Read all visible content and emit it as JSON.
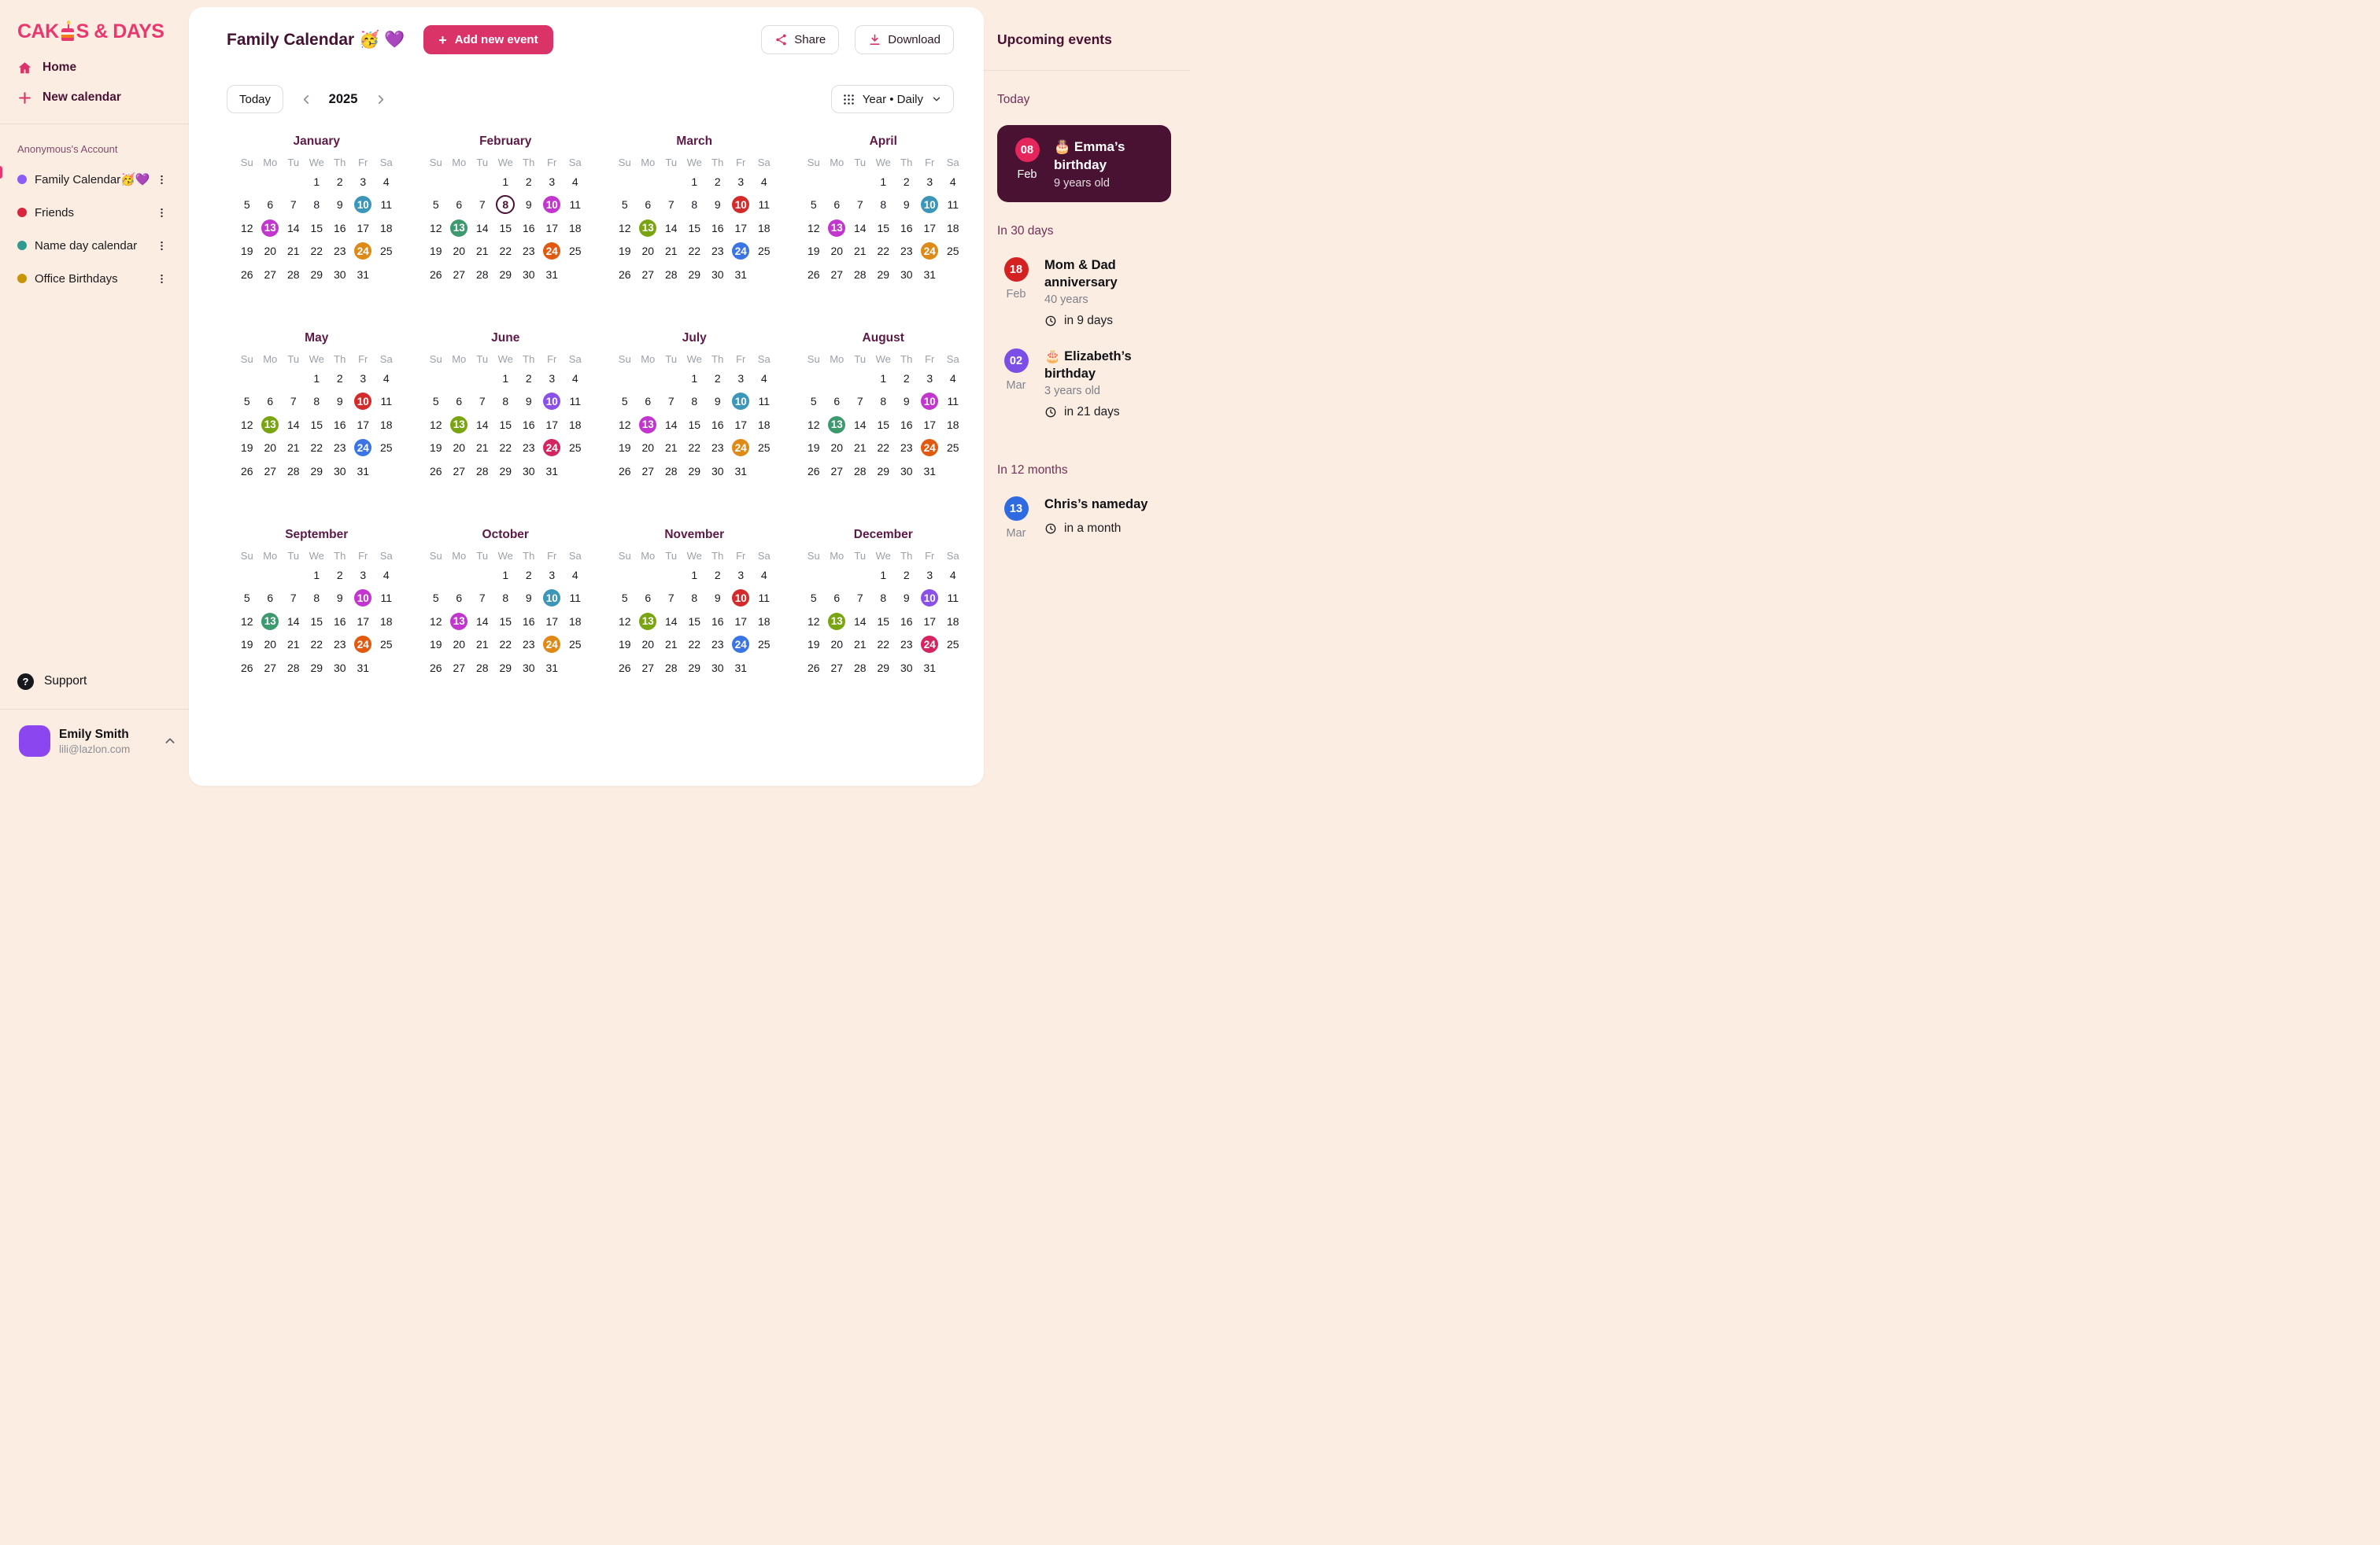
{
  "app": {
    "logo_prefix": "CAK",
    "logo_suffix": "S & DAYS",
    "logo_color": "#e8386f",
    "accent_color": "#d93368",
    "background_color": "#fcede2"
  },
  "sidebar": {
    "nav": {
      "home": "Home",
      "new_calendar": "New calendar"
    },
    "account_label": "Anonymous's Account",
    "calendars": [
      {
        "label": "Family Calendar🥳💜",
        "color": "#8b5cf6",
        "active": true
      },
      {
        "label": "Friends",
        "color": "#d7263d",
        "active": false
      },
      {
        "label": "Name day calendar",
        "color": "#2f9a8f",
        "active": false
      },
      {
        "label": "Office Birthdays",
        "color": "#c9930a",
        "active": false
      }
    ],
    "support_label": "Support",
    "user": {
      "name": "Emily Smith",
      "email": "lili@lazlon.com",
      "avatar_color": "#8b46f0"
    }
  },
  "header": {
    "title": "Family Calendar 🥳 💜",
    "add_event_label": "Add new event",
    "share_label": "Share",
    "download_label": "Download"
  },
  "toolbar": {
    "today_label": "Today",
    "year": "2025",
    "view_label": "Year • Daily"
  },
  "calendar": {
    "weekdays": [
      "Su",
      "Mo",
      "Tu",
      "We",
      "Th",
      "Fr",
      "Sa"
    ],
    "rows": [
      [
        "",
        "",
        "",
        "1",
        "2",
        "3",
        "4"
      ],
      [
        "5",
        "6",
        "7",
        "8",
        "9",
        "10",
        "11"
      ],
      [
        "12",
        "13",
        "14",
        "15",
        "16",
        "17",
        "18"
      ],
      [
        "19",
        "20",
        "21",
        "22",
        "23",
        "24",
        "25"
      ],
      [
        "26",
        "27",
        "28",
        "29",
        "30",
        "31",
        ""
      ]
    ],
    "palette": {
      "teal": "#3b96b9",
      "magenta": "#c235ce",
      "amber": "#df8a16",
      "green": "#3d9a6e",
      "olive": "#7aa513",
      "red": "#d32b2b",
      "blue": "#3b74e5",
      "violet": "#8a50e8",
      "crimson": "#d42560",
      "redorange": "#e25a10"
    },
    "today_ring_color": "#4b1233",
    "months": [
      {
        "name": "January",
        "marks": {
          "10": "teal",
          "13": "magenta",
          "24": "amber"
        }
      },
      {
        "name": "February",
        "today": "8",
        "marks": {
          "10": "magenta",
          "13": "green",
          "24": "redorange"
        }
      },
      {
        "name": "March",
        "marks": {
          "10": "red",
          "13": "olive",
          "24": "blue"
        }
      },
      {
        "name": "April",
        "marks": {
          "10": "teal",
          "13": "magenta",
          "24": "amber"
        }
      },
      {
        "name": "May",
        "marks": {
          "10": "red",
          "13": "olive",
          "24": "blue"
        }
      },
      {
        "name": "June",
        "marks": {
          "10": "violet",
          "13": "olive",
          "24": "crimson"
        }
      },
      {
        "name": "July",
        "marks": {
          "10": "teal",
          "13": "magenta",
          "24": "amber"
        }
      },
      {
        "name": "August",
        "marks": {
          "10": "magenta",
          "13": "green",
          "24": "redorange"
        }
      },
      {
        "name": "September",
        "marks": {
          "10": "magenta",
          "13": "green",
          "24": "redorange"
        }
      },
      {
        "name": "October",
        "marks": {
          "10": "teal",
          "13": "magenta",
          "24": "amber"
        }
      },
      {
        "name": "November",
        "marks": {
          "10": "red",
          "13": "olive",
          "24": "blue"
        }
      },
      {
        "name": "December",
        "marks": {
          "10": "violet",
          "13": "olive",
          "24": "crimson"
        }
      }
    ]
  },
  "events_panel": {
    "title": "Upcoming events",
    "sections": [
      {
        "label": "Today",
        "items": [
          {
            "day": "08",
            "month": "Feb",
            "badge_color": "#e4265c",
            "title": "🎂 Emma’s birthday",
            "subtitle": "9 years old",
            "card": true
          }
        ]
      },
      {
        "label": "In 30 days",
        "items": [
          {
            "day": "18",
            "month": "Feb",
            "badge_color": "#d42222",
            "title": "Mom & Dad anniversary",
            "subtitle": "40 years",
            "due": "in 9 days"
          },
          {
            "day": "02",
            "month": "Mar",
            "badge_color": "#7b4fe6",
            "title": "🎂 Elizabeth’s birthday",
            "subtitle": "3 years old",
            "due": "in 21 days"
          }
        ]
      },
      {
        "label": "In 12 months",
        "items": [
          {
            "day": "13",
            "month": "Mar",
            "badge_color": "#2f6be0",
            "title": "Chris’s nameday",
            "due": "in a month"
          }
        ]
      }
    ]
  }
}
